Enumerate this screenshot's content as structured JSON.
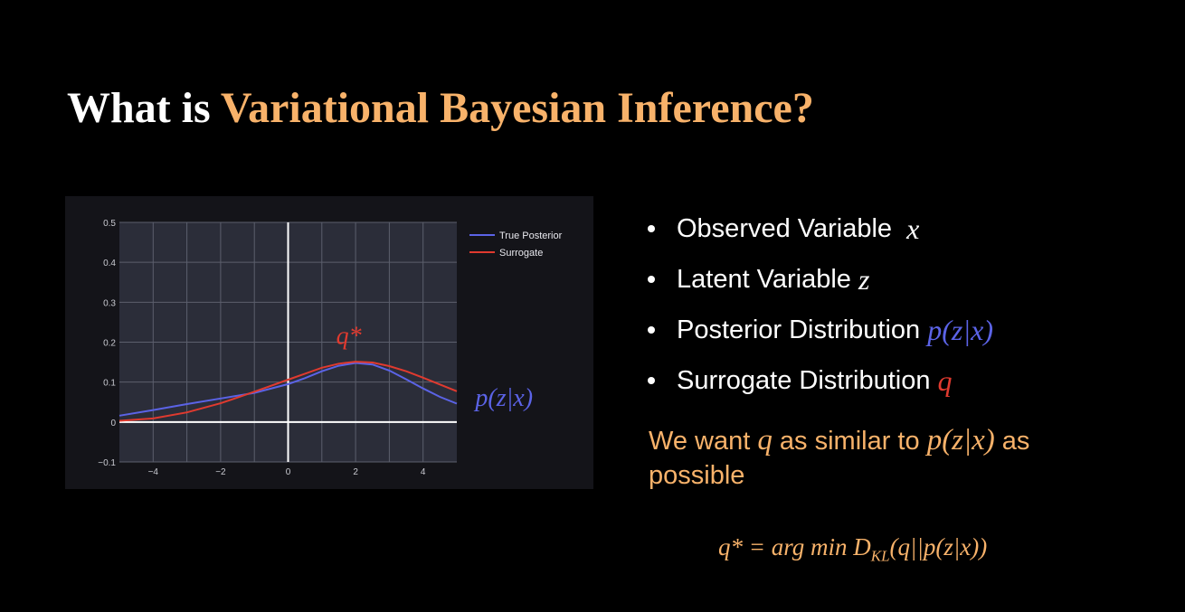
{
  "slide": {
    "title_prefix": "What is ",
    "title_highlight": "Variational Bayesian Inference?"
  },
  "bullets": [
    {
      "label": "Observed Variable",
      "symbol": "x"
    },
    {
      "label": "Latent Variable",
      "symbol": "z"
    },
    {
      "label": "Posterior Distribution",
      "symbol": "p(z|x)"
    },
    {
      "label": "Surrogate Distribution",
      "symbol": "q"
    }
  ],
  "note": {
    "part1": "We want ",
    "q": "q",
    "part2": " as similar to ",
    "pzx": "p(z|x)",
    "part3": " as possible"
  },
  "formula": {
    "lhs": "q* = arg min ",
    "d": "D",
    "sub": "KL",
    "args": "(q||p(z|x))"
  },
  "chart_data": {
    "type": "line",
    "xlim": [
      -5,
      5
    ],
    "ylim": [
      -0.1,
      0.5
    ],
    "xticks": [
      -4,
      -2,
      0,
      2,
      4
    ],
    "yticks": [
      -0.1,
      0,
      0.1,
      0.2,
      0.3,
      0.4,
      0.5
    ],
    "ytick_labels": [
      "−0.1",
      "0",
      "0.1",
      "0.2",
      "0.3",
      "0.4",
      "0.5"
    ],
    "xtick_labels": [
      "−4",
      "−2",
      "0",
      "2",
      "4"
    ],
    "grid": true,
    "legend_position": "top-right",
    "series": [
      {
        "name": "True Posterior",
        "color": "#5b63e6",
        "x": [
          -5,
          -4,
          -3,
          -2,
          -1,
          0,
          0.5,
          1,
          1.5,
          2,
          2.5,
          3,
          3.5,
          4,
          4.5,
          5
        ],
        "y": [
          0.016,
          0.03,
          0.045,
          0.059,
          0.073,
          0.095,
          0.11,
          0.127,
          0.141,
          0.148,
          0.144,
          0.129,
          0.107,
          0.084,
          0.063,
          0.046
        ]
      },
      {
        "name": "Surrogate",
        "color": "#e03a2f",
        "x": [
          -5,
          -4,
          -3,
          -2,
          -1,
          0,
          0.5,
          1,
          1.5,
          2,
          2.5,
          3,
          3.5,
          4,
          4.5,
          5
        ],
        "y": [
          0.003,
          0.009,
          0.024,
          0.047,
          0.076,
          0.106,
          0.121,
          0.136,
          0.146,
          0.151,
          0.149,
          0.14,
          0.127,
          0.111,
          0.094,
          0.077
        ]
      }
    ],
    "annotations": [
      {
        "text": "q*",
        "x": 1.8,
        "y": 0.195,
        "color": "#e03a2f"
      },
      {
        "text": "p(z|x)",
        "x": 6.4,
        "y": 0.04,
        "color": "#5b63e6"
      }
    ]
  }
}
